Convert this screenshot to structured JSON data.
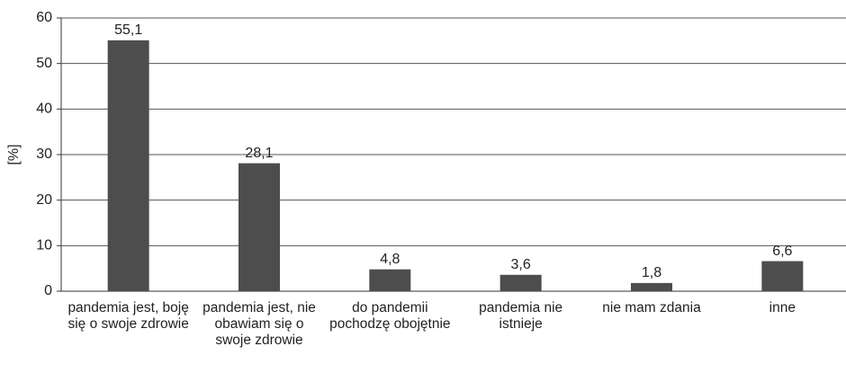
{
  "chart_data": {
    "type": "bar",
    "y_label": "[%]",
    "categories": [
      "pandemia jest, boję się o swoje zdrowie",
      "pandemia jest, nie obawiam się o swoje zdrowie",
      "do pandemii pochodzę obojętnie",
      "pandemia nie istnieje",
      "nie mam zdania",
      "inne"
    ],
    "values": [
      55.1,
      28.1,
      4.8,
      3.6,
      1.8,
      6.6
    ],
    "value_labels": [
      "55,1",
      "28,1",
      "4,8",
      "3,6",
      "1,8",
      "6,6"
    ],
    "color": "#4d4d4d",
    "ylim": [
      0,
      60
    ],
    "yticks": [
      0,
      10,
      20,
      30,
      40,
      50,
      60
    ],
    "grid": true
  }
}
